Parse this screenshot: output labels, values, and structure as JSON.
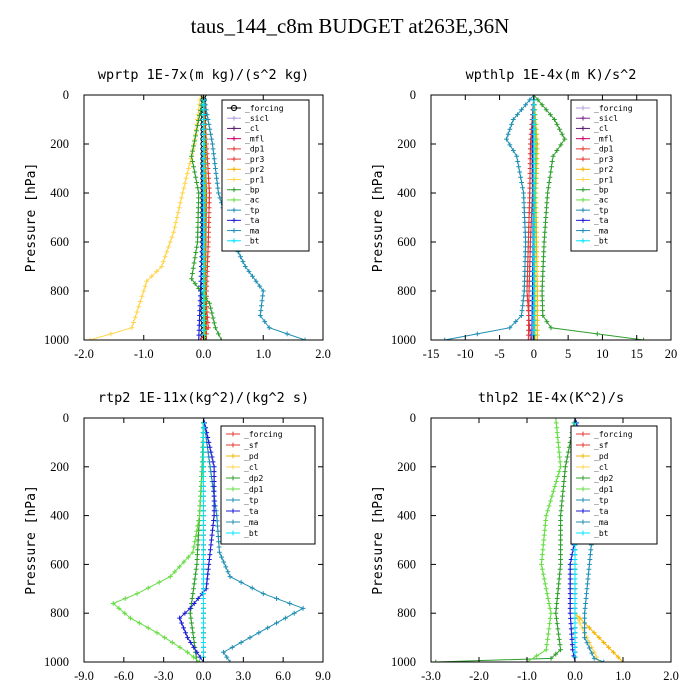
{
  "title": "taus_144_c8m  BUDGET at263E,36N",
  "colors": {
    "lavender": "#b39ddb",
    "purple": "#7b2d8e",
    "darkpurple": "#5a1a6e",
    "magenta": "#cc0066",
    "red": "#e53935",
    "gold": "#f5b301",
    "lightgold": "#ffd54f",
    "darkgreen": "#2e9e2e",
    "lightgreen": "#66dd44",
    "teal": "#1f8fb3",
    "blue": "#1c1cd6",
    "cyan": "#00e5ff",
    "black": "#000000"
  },
  "chart_data": [
    {
      "type": "line",
      "title": "wprtp  1E-7x(m kg)/(s^2 kg)",
      "ylabel": "Pressure [hPa]",
      "xlim": [
        -2.0,
        2.0
      ],
      "ylim": [
        1000,
        0
      ],
      "xticks": [
        "-2.0",
        "-1.0",
        "0.0",
        "1.0",
        "2.0"
      ],
      "yticks": [
        "0",
        "200",
        "400",
        "600",
        "800",
        "1000"
      ],
      "legend_position": "top-right",
      "series": [
        {
          "name": "_forcing",
          "color": "#000000",
          "marker": "o",
          "x": [
            0,
            0,
            0,
            0,
            0,
            0,
            0
          ],
          "y": [
            0,
            200,
            400,
            600,
            800,
            900,
            1000
          ]
        },
        {
          "name": "_sicl",
          "color": "#b39ddb",
          "x": [
            0,
            0,
            0,
            0,
            0,
            0
          ],
          "y": [
            0,
            200,
            400,
            600,
            800,
            1000
          ]
        },
        {
          "name": "_cl",
          "color": "#5a1a6e",
          "x": [
            0,
            0,
            0,
            0,
            0,
            0
          ],
          "y": [
            0,
            200,
            400,
            600,
            800,
            1000
          ]
        },
        {
          "name": "_mfl",
          "color": "#cc0066",
          "x": [
            0,
            0,
            0,
            0,
            0,
            0
          ],
          "y": [
            0,
            200,
            400,
            600,
            800,
            1000
          ]
        },
        {
          "name": "_dp1",
          "color": "#e53935",
          "x": [
            0,
            0.02,
            0.05,
            0.04,
            0.03,
            0.08,
            -0.05
          ],
          "y": [
            0,
            200,
            400,
            600,
            800,
            950,
            1000
          ]
        },
        {
          "name": "_pr3",
          "color": "#e53935",
          "x": [
            0,
            0.05,
            0.1,
            0.08,
            0.05,
            0.05,
            0.05
          ],
          "y": [
            0,
            200,
            400,
            600,
            800,
            950,
            1000
          ]
        },
        {
          "name": "_pr2",
          "color": "#f5b301",
          "x": [
            0,
            0.02,
            0.03,
            0.02,
            0.02,
            0.02
          ],
          "y": [
            0,
            200,
            400,
            600,
            800,
            1000
          ]
        },
        {
          "name": "_pr1",
          "color": "#ffd54f",
          "x": [
            -0.05,
            -0.15,
            -0.35,
            -0.5,
            -0.7,
            -0.95,
            -1.0,
            -1.2,
            -1.9
          ],
          "y": [
            0,
            200,
            400,
            560,
            700,
            760,
            800,
            950,
            1000
          ]
        },
        {
          "name": "_bp",
          "color": "#2e9e2e",
          "x": [
            0,
            -0.2,
            -0.08,
            -0.1,
            -0.2,
            0.1,
            0.2,
            0.3
          ],
          "y": [
            0,
            250,
            400,
            600,
            750,
            850,
            950,
            1000
          ]
        },
        {
          "name": "_ac",
          "color": "#66dd44",
          "x": [
            0,
            0.02,
            0.02,
            0.02,
            0.02,
            0.02
          ],
          "y": [
            0,
            200,
            400,
            600,
            800,
            1000
          ]
        },
        {
          "name": "_tp",
          "color": "#1f8fb3",
          "x": [
            0,
            0.15,
            0.25,
            0.5,
            0.7,
            1.0,
            0.95,
            1.1,
            1.7
          ],
          "y": [
            0,
            200,
            400,
            600,
            700,
            800,
            900,
            950,
            1000
          ]
        },
        {
          "name": "_ta",
          "color": "#1c1cd6",
          "x": [
            0,
            0,
            -0.01,
            -0.02,
            -0.05,
            -0.08
          ],
          "y": [
            0,
            200,
            400,
            600,
            800,
            1000
          ]
        },
        {
          "name": "_ma",
          "color": "#1f8fb3",
          "x": [
            0,
            0,
            0,
            0,
            0,
            0
          ],
          "y": [
            0,
            200,
            400,
            600,
            800,
            1000
          ]
        },
        {
          "name": "_bt",
          "color": "#00e5ff",
          "x": [
            0,
            0,
            0,
            0,
            0,
            0
          ],
          "y": [
            0,
            200,
            400,
            600,
            800,
            1000
          ]
        }
      ]
    },
    {
      "type": "line",
      "title": "wpthlp  1E-4x(m K)/s^2",
      "ylabel": "Pressure [hPa]",
      "xlim": [
        -15,
        20
      ],
      "ylim": [
        1000,
        0
      ],
      "xticks": [
        "-15",
        "-10",
        "-5",
        "0",
        "5",
        "10",
        "15",
        "20"
      ],
      "yticks": [
        "0",
        "200",
        "400",
        "600",
        "800",
        "1000"
      ],
      "legend_position": "top-right",
      "series": [
        {
          "name": "_forcing",
          "color": "#b39ddb",
          "x": [
            0,
            0,
            0,
            0,
            0,
            0
          ],
          "y": [
            0,
            200,
            400,
            600,
            800,
            1000
          ]
        },
        {
          "name": "_sicl",
          "color": "#7b2d8e",
          "x": [
            0,
            0,
            0,
            0,
            0,
            0
          ],
          "y": [
            0,
            200,
            400,
            600,
            800,
            1000
          ]
        },
        {
          "name": "_cl",
          "color": "#5a1a6e",
          "x": [
            0,
            0,
            0,
            0,
            0,
            0
          ],
          "y": [
            0,
            200,
            400,
            600,
            800,
            1000
          ]
        },
        {
          "name": "_mfl",
          "color": "#cc0066",
          "x": [
            0,
            0,
            0,
            0,
            0,
            0
          ],
          "y": [
            0,
            200,
            400,
            600,
            800,
            1000
          ]
        },
        {
          "name": "_dp1",
          "color": "#e53935",
          "x": [
            0,
            -0.3,
            -0.2,
            -0.5,
            -0.7,
            -0.8
          ],
          "y": [
            0,
            200,
            400,
            600,
            800,
            1000
          ]
        },
        {
          "name": "_pr3",
          "color": "#e53935",
          "x": [
            0,
            -0.5,
            -0.6,
            -0.8,
            -1.0,
            -0.5
          ],
          "y": [
            0,
            200,
            400,
            600,
            800,
            1000
          ]
        },
        {
          "name": "_pr2",
          "color": "#f5b301",
          "x": [
            0,
            0.5,
            0.3,
            0.4,
            0.5,
            0.5
          ],
          "y": [
            0,
            200,
            400,
            600,
            800,
            1000
          ]
        },
        {
          "name": "_pr1",
          "color": "#ffd54f",
          "x": [
            0,
            0.2,
            0.3,
            0.2,
            0.2,
            0.2
          ],
          "y": [
            0,
            200,
            400,
            600,
            800,
            1000
          ]
        },
        {
          "name": "_bp",
          "color": "#2e9e2e",
          "x": [
            0,
            3.0,
            4.5,
            2.8,
            2.0,
            1.5,
            1.2,
            1.3,
            2.5,
            16.0
          ],
          "y": [
            0,
            100,
            180,
            250,
            400,
            600,
            800,
            900,
            950,
            1000
          ]
        },
        {
          "name": "_ac",
          "color": "#66dd44",
          "x": [
            0,
            0.3,
            0.2,
            0.1,
            0.1,
            0.1
          ],
          "y": [
            0,
            200,
            400,
            600,
            800,
            1000
          ]
        },
        {
          "name": "_tp",
          "color": "#1f8fb3",
          "x": [
            0,
            -3.0,
            -4.0,
            -2.5,
            -1.5,
            -1.2,
            -1.4,
            -1.8,
            -3.5,
            -13.0
          ],
          "y": [
            0,
            100,
            180,
            250,
            400,
            600,
            800,
            900,
            950,
            1000
          ]
        },
        {
          "name": "_ta",
          "color": "#1c1cd6",
          "x": [
            0,
            -0.2,
            -0.1,
            -0.1,
            -0.2,
            -0.3
          ],
          "y": [
            0,
            200,
            400,
            600,
            800,
            1000
          ]
        },
        {
          "name": "_ma",
          "color": "#1f8fb3",
          "x": [
            0,
            0,
            0,
            0,
            0,
            0
          ],
          "y": [
            0,
            200,
            400,
            600,
            800,
            1000
          ]
        },
        {
          "name": "_bt",
          "color": "#00e5ff",
          "x": [
            0,
            0,
            0,
            0,
            0,
            0
          ],
          "y": [
            0,
            200,
            400,
            600,
            800,
            1000
          ]
        }
      ]
    },
    {
      "type": "line",
      "title": "rtp2  1E-11x(kg^2)/(kg^2 s)",
      "ylabel": "Pressure [hPa]",
      "xlim": [
        -9.0,
        9.0
      ],
      "ylim": [
        1000,
        0
      ],
      "xticks": [
        "-9.0",
        "-6.0",
        "-3.0",
        "0.0",
        "3.0",
        "6.0",
        "9.0"
      ],
      "yticks": [
        "0",
        "200",
        "400",
        "600",
        "800",
        "1000"
      ],
      "legend_position": "top-right",
      "series": [
        {
          "name": "_forcing",
          "color": "#e53935",
          "x": [
            0,
            0,
            0,
            0,
            0,
            0
          ],
          "y": [
            0,
            200,
            400,
            600,
            800,
            1000
          ]
        },
        {
          "name": "_sf",
          "color": "#e53935",
          "x": [
            0,
            0,
            0,
            0,
            0,
            0
          ],
          "y": [
            0,
            200,
            400,
            600,
            800,
            1000
          ]
        },
        {
          "name": "_pd",
          "color": "#f5b301",
          "x": [
            0,
            0,
            0,
            0,
            0,
            0
          ],
          "y": [
            0,
            200,
            400,
            600,
            800,
            1000
          ]
        },
        {
          "name": "_cl",
          "color": "#ffd54f",
          "x": [
            0,
            0,
            0,
            0,
            0,
            0
          ],
          "y": [
            0,
            200,
            400,
            600,
            800,
            1000
          ]
        },
        {
          "name": "_dp2",
          "color": "#2e9e2e",
          "x": [
            0,
            -0.1,
            -0.3,
            -0.5,
            -1.0,
            -0.5
          ],
          "y": [
            0,
            200,
            400,
            600,
            800,
            1000
          ]
        },
        {
          "name": "_dp1",
          "color": "#66dd44",
          "x": [
            0,
            -0.05,
            -0.3,
            -0.8,
            -2.5,
            -5.0,
            -6.8,
            -5.5,
            -3.5,
            -1.2,
            -0.3
          ],
          "y": [
            0,
            200,
            400,
            550,
            650,
            720,
            760,
            820,
            880,
            960,
            1000
          ]
        },
        {
          "name": "_tp",
          "color": "#1f8fb3",
          "x": [
            0,
            0.5,
            1.0,
            1.2,
            2.0,
            4.5,
            7.5,
            5.5,
            3.5,
            1.5,
            2.0
          ],
          "y": [
            0,
            200,
            400,
            550,
            650,
            720,
            780,
            840,
            900,
            960,
            1000
          ]
        },
        {
          "name": "_ta",
          "color": "#1c1cd6",
          "x": [
            0,
            0.8,
            0.8,
            0.6,
            0.4,
            0.2,
            -1.0,
            -1.8,
            -1.2,
            -0.5,
            0
          ],
          "y": [
            0,
            200,
            400,
            500,
            600,
            700,
            780,
            820,
            900,
            960,
            1000
          ]
        },
        {
          "name": "_ma",
          "color": "#1f8fb3",
          "x": [
            0,
            0,
            0,
            0,
            0,
            0
          ],
          "y": [
            0,
            200,
            400,
            600,
            800,
            1000
          ]
        },
        {
          "name": "_bt",
          "color": "#00e5ff",
          "x": [
            0,
            0,
            0,
            0,
            0,
            0
          ],
          "y": [
            0,
            200,
            400,
            600,
            800,
            1000
          ]
        }
      ]
    },
    {
      "type": "line",
      "title": "thlp2  1E-4x(K^2)/s",
      "ylabel": "Pressure [hPa]",
      "xlim": [
        -3.0,
        2.0
      ],
      "ylim": [
        1000,
        0
      ],
      "xticks": [
        "-3.0",
        "-2.0",
        "-1.0",
        "0.0",
        "1.0",
        "2.0"
      ],
      "yticks": [
        "0",
        "200",
        "400",
        "600",
        "800",
        "1000"
      ],
      "legend_position": "top-right",
      "series": [
        {
          "name": "_forcing",
          "color": "#e53935",
          "x": [
            0,
            0,
            0,
            0,
            0,
            0
          ],
          "y": [
            0,
            200,
            400,
            600,
            800,
            1000
          ]
        },
        {
          "name": "_sf",
          "color": "#e53935",
          "x": [
            0,
            0,
            0,
            0,
            0,
            0
          ],
          "y": [
            0,
            200,
            400,
            600,
            800,
            1000
          ]
        },
        {
          "name": "_pd",
          "color": "#f5b301",
          "x": [
            0,
            0,
            0,
            0,
            0,
            1.0
          ],
          "y": [
            0,
            200,
            400,
            600,
            800,
            1000
          ]
        },
        {
          "name": "_cl",
          "color": "#ffd54f",
          "x": [
            0,
            0,
            0,
            0,
            0,
            0.5
          ],
          "y": [
            0,
            200,
            400,
            600,
            800,
            1000
          ]
        },
        {
          "name": "_dp2",
          "color": "#2e9e2e",
          "x": [
            0,
            -0.2,
            -0.3,
            -0.3,
            -0.4,
            -0.3,
            -0.5,
            -2.9
          ],
          "y": [
            0,
            200,
            400,
            600,
            800,
            950,
            985,
            1000
          ]
        },
        {
          "name": "_dp1",
          "color": "#66dd44",
          "x": [
            -0.4,
            -0.3,
            -0.6,
            -0.7,
            -0.6,
            -0.5,
            -0.6,
            -1.0
          ],
          "y": [
            0,
            200,
            400,
            600,
            700,
            800,
            950,
            1000
          ]
        },
        {
          "name": "_tp",
          "color": "#1f8fb3",
          "x": [
            0,
            0.3,
            0.4,
            0.3,
            0.2,
            0.2,
            0.4,
            0.6
          ],
          "y": [
            0,
            200,
            400,
            600,
            800,
            900,
            985,
            1000
          ]
        },
        {
          "name": "_ta",
          "color": "#1c1cd6",
          "x": [
            0,
            0.3,
            0.1,
            -0.1,
            -0.1,
            -0.05,
            0
          ],
          "y": [
            0,
            200,
            400,
            600,
            800,
            950,
            1000
          ]
        },
        {
          "name": "_ma",
          "color": "#1f8fb3",
          "x": [
            0,
            0,
            0,
            0,
            0,
            0
          ],
          "y": [
            0,
            200,
            400,
            600,
            800,
            1000
          ]
        },
        {
          "name": "_bt",
          "color": "#00e5ff",
          "x": [
            0,
            0,
            0,
            0,
            0,
            0
          ],
          "y": [
            0,
            200,
            400,
            600,
            800,
            1000
          ]
        }
      ]
    }
  ]
}
